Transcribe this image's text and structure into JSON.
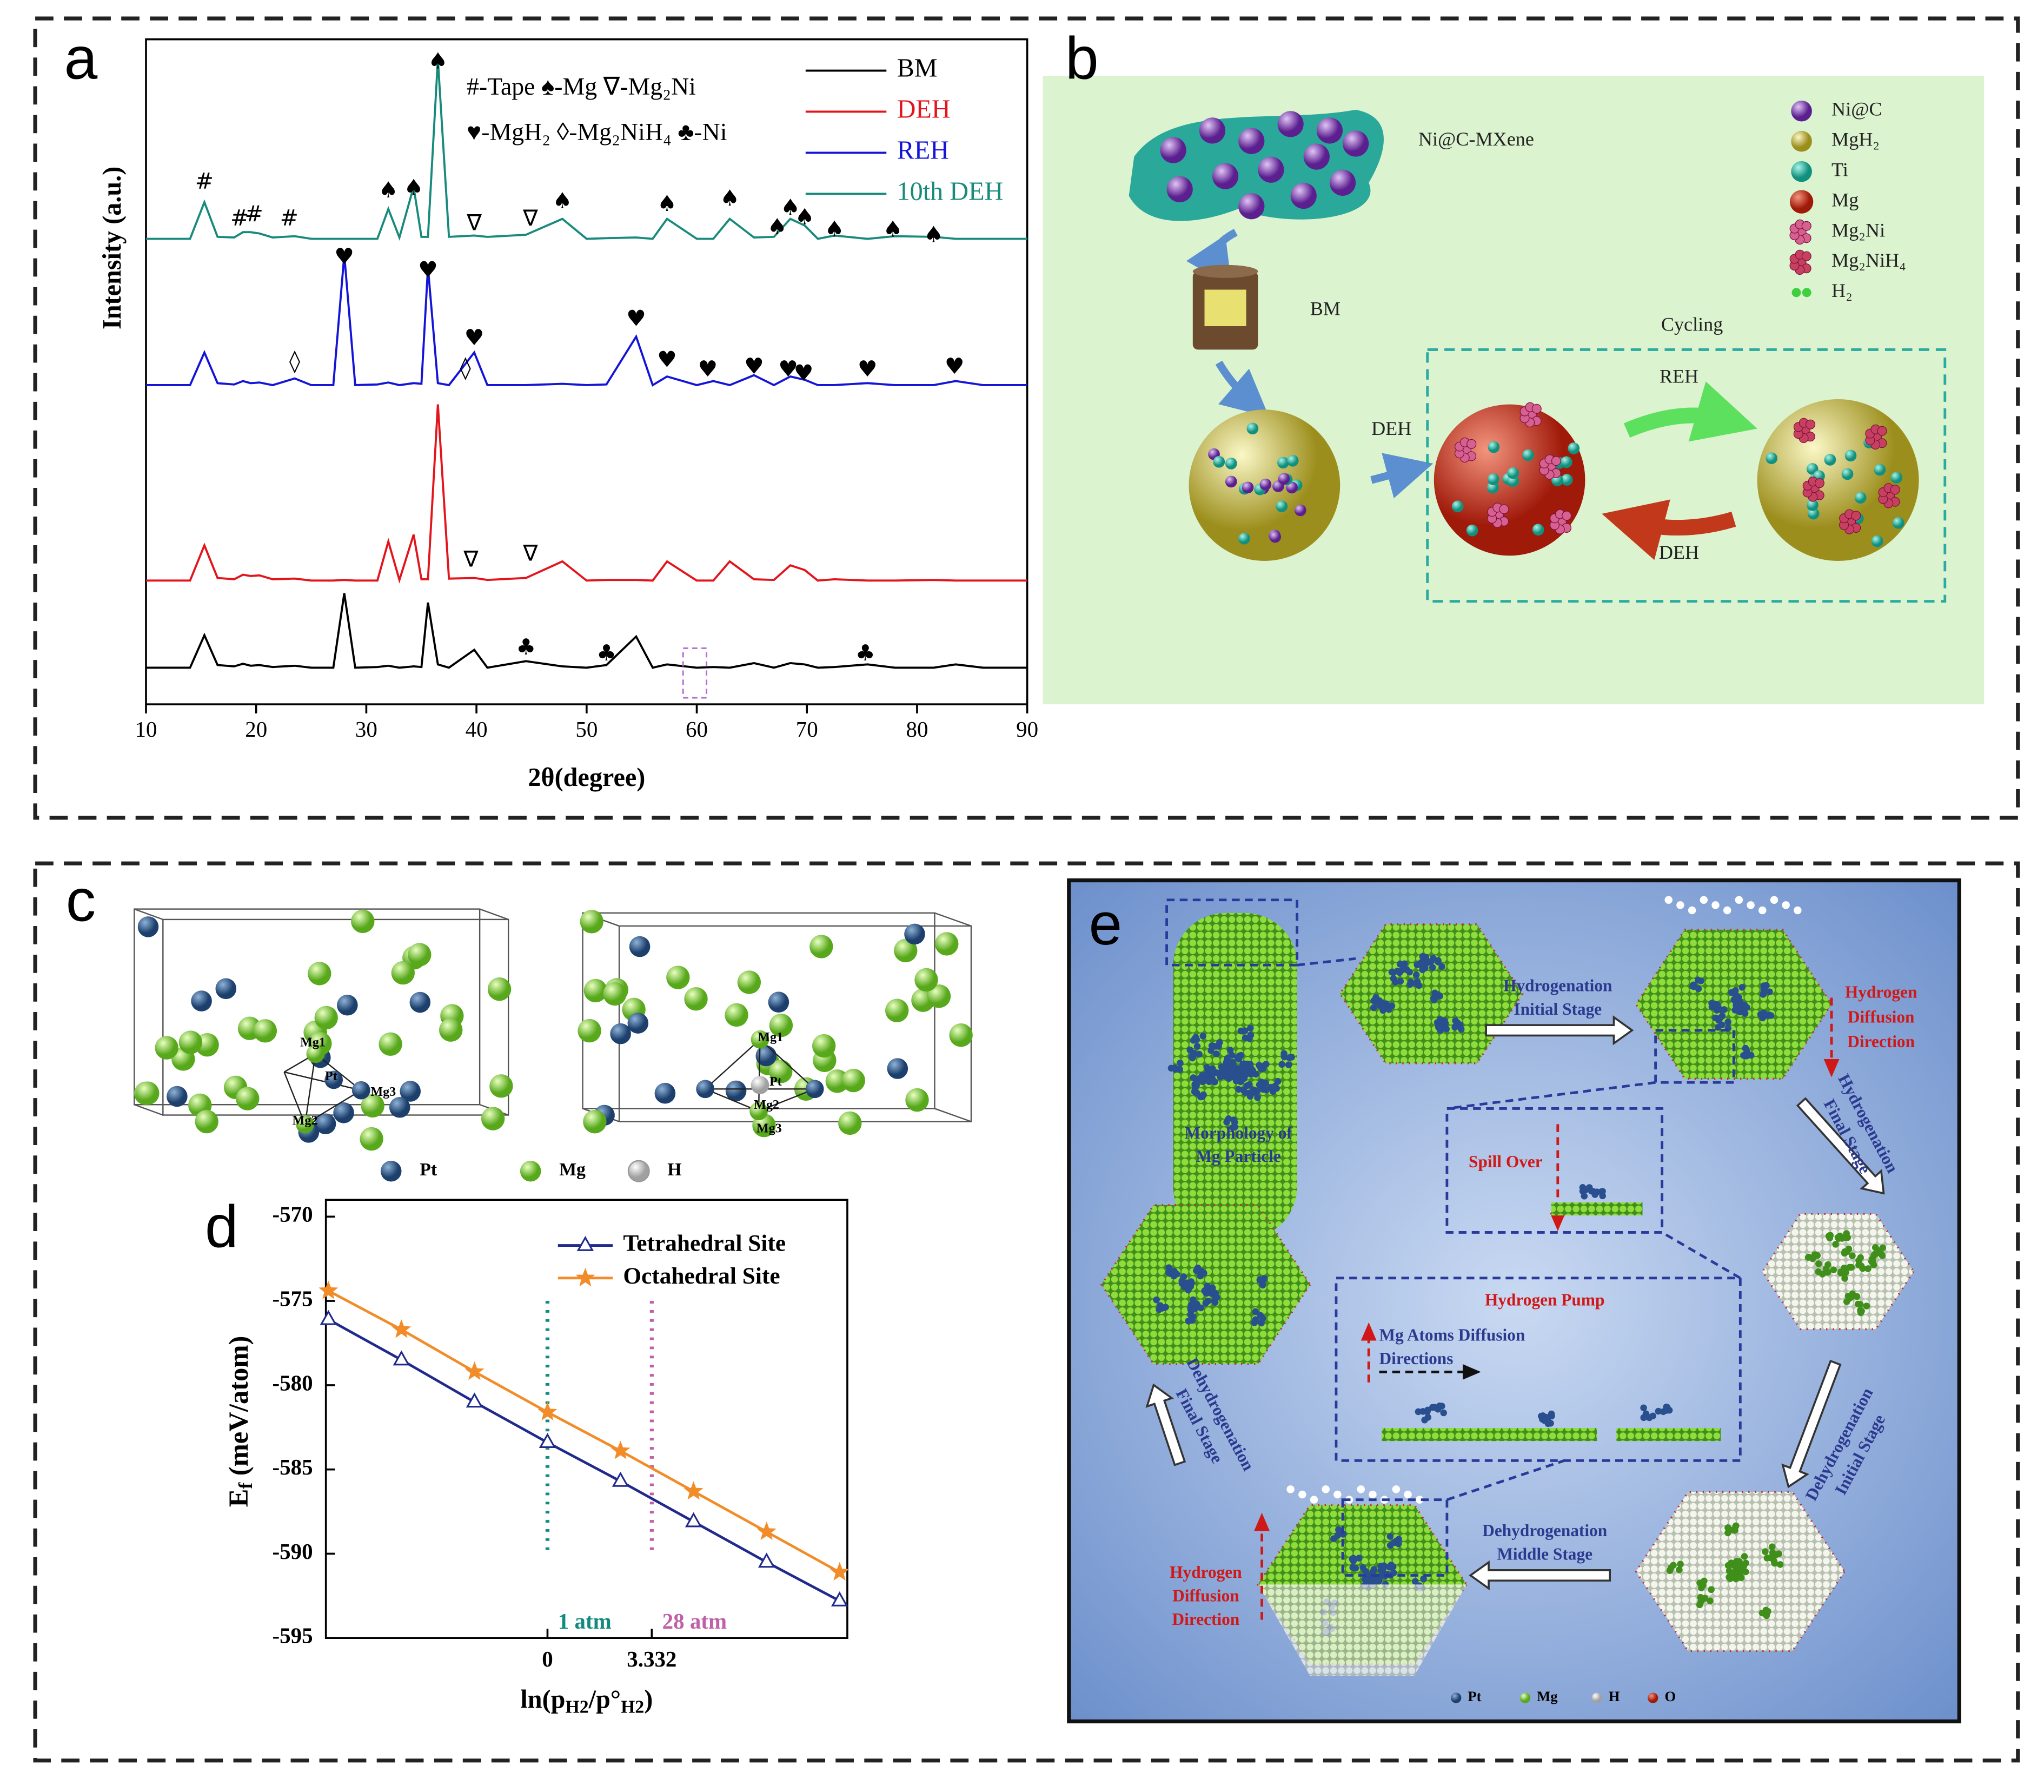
{
  "panel_labels": [
    "a",
    "b",
    "c",
    "d",
    "e"
  ],
  "chart_data": [
    {
      "type": "line",
      "x_label": "2θ(degree)",
      "y_label": "Intensity (a.u.)",
      "x": [
        10,
        14,
        15.3,
        16.5,
        18,
        18.8,
        19.5,
        20.3,
        21.5,
        23.5,
        25,
        27,
        28,
        29,
        31,
        32,
        33,
        34.3,
        35,
        35.6,
        36.5,
        37.5,
        39.8,
        41,
        44.5,
        47.8,
        50,
        51.8,
        54.5,
        56,
        57.3,
        60,
        61.5,
        63,
        65.2,
        67,
        68.5,
        69.8,
        71,
        72.5,
        75.5,
        78,
        81.5,
        83.5,
        86,
        90
      ],
      "series": [
        {
          "name": "BM",
          "color": "#000000",
          "values": [
            5.5,
            5.5,
            10.4,
            5.9,
            5.7,
            6.1,
            5.8,
            5.9,
            5.6,
            5.8,
            5.5,
            5.5,
            16.7,
            5.5,
            5.6,
            5.8,
            5.5,
            5.7,
            5.6,
            15.3,
            6,
            5.5,
            8.2,
            5.5,
            6.5,
            5.7,
            5.5,
            5.9,
            10.2,
            5.5,
            6,
            5.5,
            5.6,
            5.5,
            6.2,
            5.5,
            6.2,
            6,
            5.5,
            5.6,
            6,
            5.5,
            5.5,
            6,
            5.5,
            5.5
          ]
        },
        {
          "name": "DEH",
          "color": "#e3141b",
          "values": [
            18.6,
            18.6,
            23.9,
            19,
            18.8,
            19.5,
            19.3,
            19.4,
            18.8,
            18.9,
            18.6,
            18.6,
            18.7,
            18.6,
            18.6,
            24.5,
            18.7,
            25.5,
            18.8,
            18.8,
            45.1,
            18.9,
            19,
            18.7,
            19,
            21.5,
            18.6,
            18.7,
            18.7,
            18.6,
            21.5,
            18.6,
            18.6,
            21.5,
            18.8,
            18.7,
            20.9,
            20.2,
            18.6,
            18.8,
            18.6,
            18.6,
            18.7,
            18.6,
            18.6,
            18.6
          ]
        },
        {
          "name": "REH",
          "color": "#1414d8",
          "values": [
            48,
            48,
            52.9,
            48.3,
            48.1,
            48.6,
            48.3,
            48.4,
            48,
            49,
            48,
            48,
            67.6,
            48,
            48.1,
            48.4,
            48,
            48.3,
            48.2,
            65.7,
            48.3,
            48,
            52.9,
            48,
            48,
            48.2,
            48,
            48.1,
            55.3,
            48,
            49.3,
            48,
            48.6,
            48,
            49.5,
            48,
            49.3,
            48.8,
            48,
            48,
            48.3,
            48,
            48,
            48.6,
            48,
            48
          ]
        },
        {
          "name": "10th DEH",
          "color": "#178a7c",
          "values": [
            70,
            70,
            75.5,
            70.3,
            70.2,
            71,
            71,
            70.8,
            70.2,
            70.4,
            70,
            70,
            70,
            70,
            70,
            74.5,
            70.2,
            77.8,
            70.3,
            70.3,
            97,
            70.3,
            70.5,
            70.3,
            70.6,
            73,
            70,
            70.1,
            70.2,
            70,
            73,
            70,
            70,
            73,
            70.2,
            70.3,
            73,
            72,
            70,
            70.5,
            70,
            70.4,
            70.3,
            70,
            70,
            70
          ]
        }
      ],
      "xlim": [
        10,
        90
      ],
      "xticks": [
        10,
        20,
        30,
        40,
        50,
        60,
        70,
        80,
        90
      ],
      "ylim": [
        0,
        100
      ],
      "legend": "upper right",
      "legend_notes": [
        "#-Tape ♠-Mg ∇-Mg₂Ni",
        "♥-MgH₂ ◊-Mg₂NiH₄ ♣-Ni"
      ],
      "annotations": [
        {
          "text": "#",
          "x": 15.3,
          "y": 78.4
        },
        {
          "text": "#",
          "x": 18.5,
          "y": 72.9
        },
        {
          "text": "#",
          "x": 19.8,
          "y": 73.5
        },
        {
          "text": "#",
          "x": 23,
          "y": 72.9
        },
        {
          "text": "♠",
          "x": 32,
          "y": 77.1
        },
        {
          "text": "♠",
          "x": 34.3,
          "y": 77.5
        },
        {
          "text": "♠",
          "x": 36.5,
          "y": 96.5
        },
        {
          "text": "∇",
          "x": 39.8,
          "y": 72.2
        },
        {
          "text": "∇",
          "x": 44.9,
          "y": 72.9
        },
        {
          "text": "♠",
          "x": 47.8,
          "y": 75.5
        },
        {
          "text": "♠",
          "x": 57.3,
          "y": 75.1
        },
        {
          "text": "♠",
          "x": 63,
          "y": 75.9
        },
        {
          "text": "♠",
          "x": 67.3,
          "y": 71.6
        },
        {
          "text": "♠",
          "x": 68.5,
          "y": 74.5
        },
        {
          "text": "♠",
          "x": 69.8,
          "y": 73.1
        },
        {
          "text": "♠",
          "x": 72.5,
          "y": 71.2
        },
        {
          "text": "♠",
          "x": 77.8,
          "y": 71.2
        },
        {
          "text": "♠",
          "x": 81.5,
          "y": 70.4
        },
        {
          "text": "♥",
          "x": 28,
          "y": 67.1
        },
        {
          "text": "♥",
          "x": 35.6,
          "y": 65.1
        },
        {
          "text": "◊",
          "x": 23.5,
          "y": 51.4
        },
        {
          "text": "♥",
          "x": 39.8,
          "y": 54.9
        },
        {
          "text": "◊",
          "x": 39,
          "y": 50.4
        },
        {
          "text": "♥",
          "x": 54.5,
          "y": 57.8
        },
        {
          "text": "♥",
          "x": 57.3,
          "y": 51.6
        },
        {
          "text": "♥",
          "x": 61,
          "y": 50.2
        },
        {
          "text": "♥",
          "x": 65.2,
          "y": 50.6
        },
        {
          "text": "♥",
          "x": 68.3,
          "y": 50.2
        },
        {
          "text": "♥",
          "x": 69.7,
          "y": 49.6
        },
        {
          "text": "♥",
          "x": 75.5,
          "y": 50.2
        },
        {
          "text": "♥",
          "x": 83.4,
          "y": 50.6
        },
        {
          "text": "∇",
          "x": 39.5,
          "y": 21.6
        },
        {
          "text": "∇",
          "x": 44.9,
          "y": 22.5
        },
        {
          "text": "♣",
          "x": 44.5,
          "y": 8.4
        },
        {
          "text": "♣",
          "x": 51.8,
          "y": 7.5
        },
        {
          "text": "♣",
          "x": 75.3,
          "y": 7.5
        }
      ]
    },
    {
      "type": "line",
      "x_label": [
        "ln(p",
        "H2",
        "/p°",
        "H2",
        ")"
      ],
      "y_label": [
        "E",
        "f",
        " (meV/atom)"
      ],
      "x": [
        -7,
        -4.667,
        -2.333,
        0,
        2.333,
        4.667,
        7,
        9.333
      ],
      "series": [
        {
          "name": "Tetrahedral Site",
          "color": "#1f2a8c",
          "marker": "triangle",
          "values": [
            -576.1,
            -578.5,
            -581,
            -583.4,
            -585.7,
            -588.1,
            -590.5,
            -592.8
          ]
        },
        {
          "name": "Octahedral Site",
          "color": "#f28c28",
          "marker": "star",
          "values": [
            -574.4,
            -576.7,
            -579.2,
            -581.6,
            -583.9,
            -586.3,
            -588.7,
            -591.1
          ]
        }
      ],
      "xlim": [
        -7.08,
        9.58
      ],
      "xticks": [
        0,
        3.332
      ],
      "ylim": [
        -595,
        -569
      ],
      "yticks": [
        -570,
        -575,
        -580,
        -585,
        -590,
        -595
      ],
      "legend": "upper right",
      "vlines": [
        {
          "x": 0,
          "label": "1 atm",
          "color": "#138a80",
          "y_range": [
            -575,
            -590
          ]
        },
        {
          "x": 3.332,
          "label": "28 atm",
          "color": "#c060a8",
          "y_range": [
            -575,
            -590
          ]
        }
      ]
    }
  ],
  "diagram_b": {
    "mxene": "Ni@C-MXene",
    "bm": "BM",
    "deh": "DEH",
    "cycling": "Cycling",
    "reh": "REH",
    "deh_back": "DEH",
    "legend": [
      "Ni@C",
      "MgH₂",
      "Ti",
      "Mg",
      "Mg₂Ni",
      "Mg₂NiH₄",
      "H₂"
    ]
  },
  "diagram_c": {
    "left_labels": [
      "Mg1",
      "Pt",
      "Mg3",
      "Mg2"
    ],
    "right_labels": [
      "Mg1",
      "Pt",
      "Mg2",
      "Mg3"
    ],
    "legend": [
      "Pt",
      "Mg",
      "H"
    ]
  },
  "diagram_e": {
    "morphology": [
      "Morphology of",
      "Mg Particle"
    ],
    "hyd_initial": [
      "Hydrogenation",
      "Initial Stage"
    ],
    "h_diff_top": [
      "Hydrogen",
      "Diffusion",
      "Direction"
    ],
    "hyd_final": [
      "Hydrogenation",
      "Final Stage"
    ],
    "spill_over": "Spill Over",
    "pump": "Hydrogen Pump",
    "mg_diff": [
      "Mg Atoms Diffusion",
      "Directions"
    ],
    "dehyd_initial": [
      "Dehydrogenation",
      "Initial Stage"
    ],
    "dehyd_middle": [
      "Dehydrogenation",
      "Middle Stage"
    ],
    "dehyd_final": [
      "Dehydrogenation",
      "Final Stage"
    ],
    "h_diff_bottom": [
      "Hydrogen",
      "Diffusion",
      "Direction"
    ],
    "legend": [
      "Pt",
      "Mg",
      "H",
      "O"
    ]
  }
}
